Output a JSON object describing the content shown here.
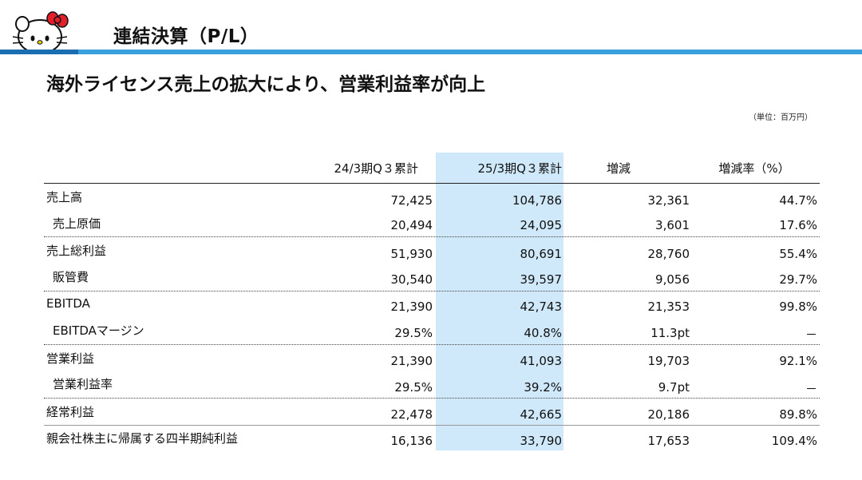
{
  "header": {
    "title": "連結決算（P/L）"
  },
  "subtitle": "海外ライセンス売上の拡大により、営業利益率が向上",
  "unit_note": "（単位：百万円）",
  "table": {
    "columns": [
      "24/3期Q３累計",
      "25/3期Q３累計",
      "増減",
      "増減率（%）"
    ],
    "rows": [
      {
        "label": "売上高",
        "values": [
          "72,425",
          "104,786",
          "32,361",
          "44.7%"
        ]
      },
      {
        "label": "売上原価",
        "values": [
          "20,494",
          "24,095",
          "3,601",
          "17.6%"
        ]
      },
      {
        "label": "売上総利益",
        "values": [
          "51,930",
          "80,691",
          "28,760",
          "55.4%"
        ]
      },
      {
        "label": "販管費",
        "values": [
          "30,540",
          "39,597",
          "9,056",
          "29.7%"
        ]
      },
      {
        "label": "EBITDA",
        "values": [
          "21,390",
          "42,743",
          "21,353",
          "99.8%"
        ]
      },
      {
        "label": "EBITDAマージン",
        "values": [
          "29.5%",
          "40.8%",
          "11.3pt",
          "－"
        ]
      },
      {
        "label": "営業利益",
        "values": [
          "21,390",
          "41,093",
          "19,703",
          "92.1%"
        ]
      },
      {
        "label": "営業利益率",
        "values": [
          "29.5%",
          "39.2%",
          "9.7pt",
          "－"
        ]
      },
      {
        "label": "経常利益",
        "values": [
          "22,478",
          "42,665",
          "20,186",
          "89.8%"
        ]
      },
      {
        "label": "親会社株主に帰属する四半期純利益",
        "values": [
          "16,136",
          "33,790",
          "17,653",
          "109.4%"
        ]
      }
    ]
  },
  "colors": {
    "accent": "#3ba1dc",
    "highlight": "#cfe9fb"
  },
  "icons": {
    "logo": "character-logo-icon"
  }
}
